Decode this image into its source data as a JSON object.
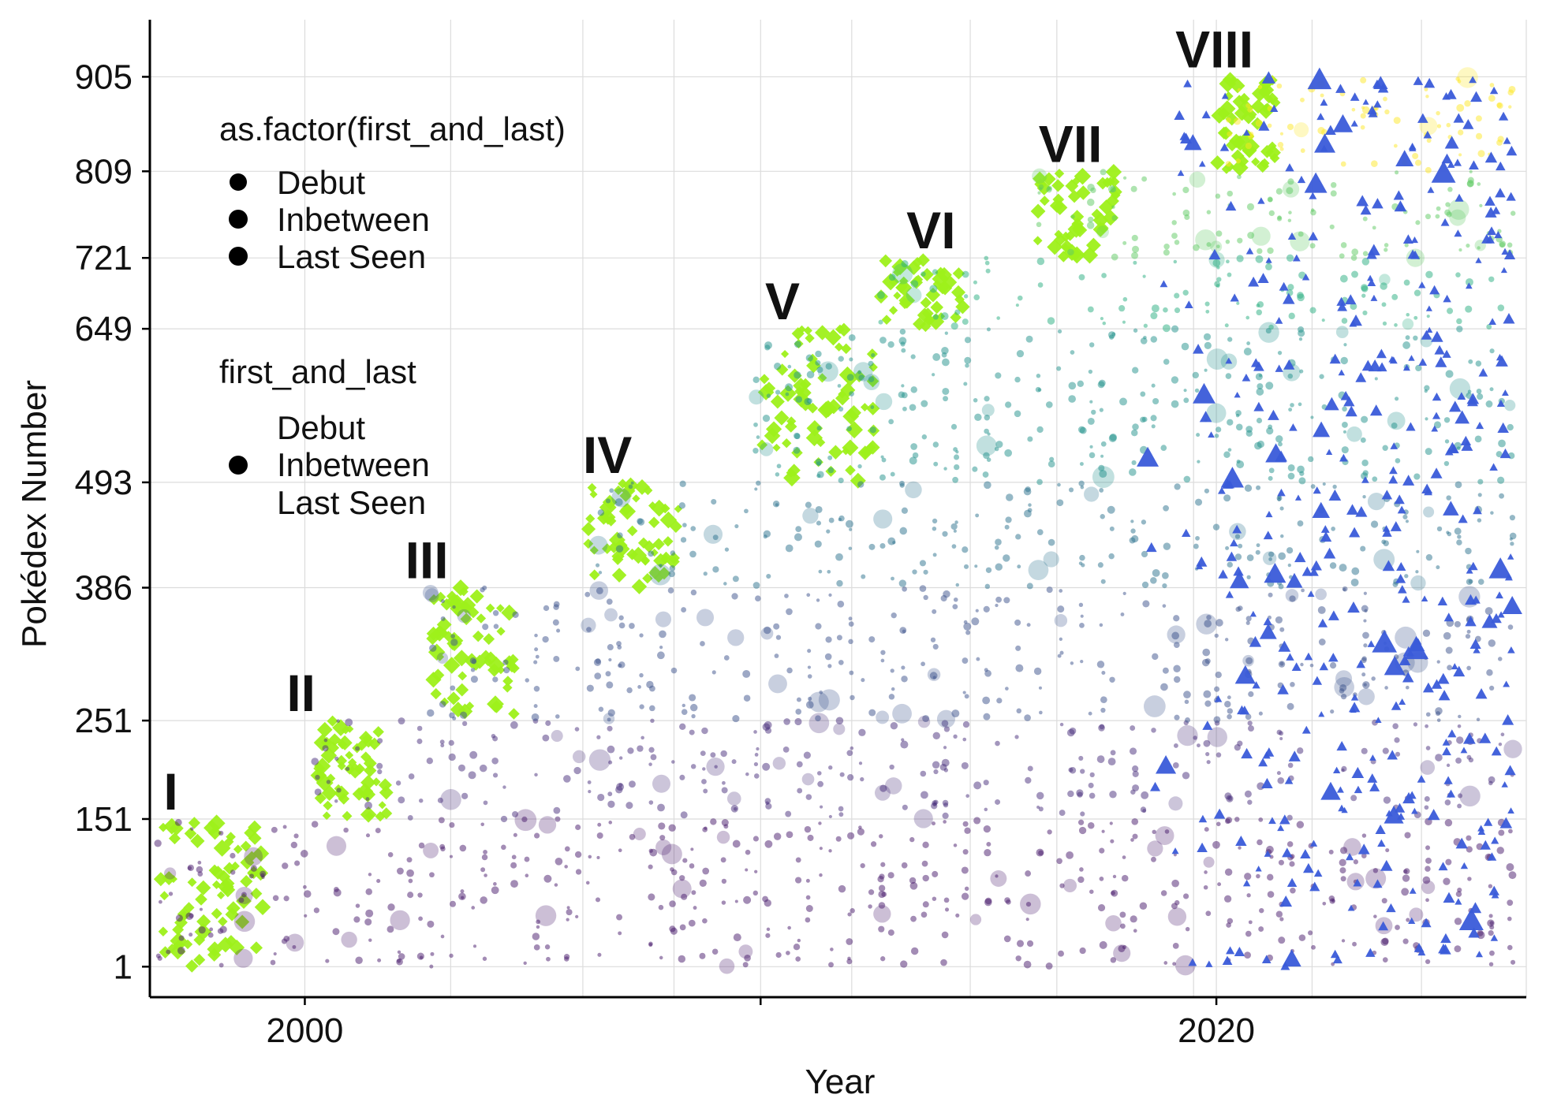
{
  "chart_data": {
    "type": "scatter",
    "title": "",
    "xlabel": "Year",
    "ylabel": "Pokédex Number",
    "xlim": [
      1996.6,
      2026.8
    ],
    "ylim": [
      -30,
      963
    ],
    "x_ticks": [
      {
        "value": 2000,
        "label": "2000"
      },
      {
        "value": 2010,
        "label": ""
      },
      {
        "value": 2020,
        "label": "2020"
      }
    ],
    "x_grid": [
      1996.6,
      2000,
      2003.2,
      2006.1,
      2008.1,
      2010,
      2012,
      2014.6,
      2016.5,
      2019.5,
      2020,
      2022.1,
      2024.5,
      2026.8
    ],
    "y_ticks": [
      {
        "value": 1,
        "label": "1"
      },
      {
        "value": 151,
        "label": "151"
      },
      {
        "value": 251,
        "label": "251"
      },
      {
        "value": 386,
        "label": "386"
      },
      {
        "value": 493,
        "label": "493"
      },
      {
        "value": 649,
        "label": "649"
      },
      {
        "value": 721,
        "label": "721"
      },
      {
        "value": 809,
        "label": "809"
      },
      {
        "value": 905,
        "label": "905"
      }
    ],
    "grid": true,
    "generations": [
      {
        "label": "I",
        "year": 1996.9,
        "dex": 151,
        "range": [
          1,
          151
        ],
        "x0": 1996.8,
        "x1": 1999.1
      },
      {
        "label": "II",
        "year": 1999.6,
        "dex": 251,
        "range": [
          152,
          251
        ],
        "x0": 2000.3,
        "x1": 2001.8
      },
      {
        "label": "III",
        "year": 2002.2,
        "dex": 386,
        "range": [
          252,
          386
        ],
        "x0": 2002.8,
        "x1": 2004.6
      },
      {
        "label": "IV",
        "year": 2006.1,
        "dex": 493,
        "range": [
          387,
          493
        ],
        "x0": 2006.2,
        "x1": 2008.2
      },
      {
        "label": "V",
        "year": 2010.1,
        "dex": 649,
        "range": [
          494,
          649
        ],
        "x0": 2010.0,
        "x1": 2012.5
      },
      {
        "label": "VI",
        "year": 2013.2,
        "dex": 721,
        "range": [
          650,
          721
        ],
        "x0": 2012.6,
        "x1": 2014.5
      },
      {
        "label": "VII",
        "year": 2016.1,
        "dex": 809,
        "range": [
          722,
          809
        ],
        "x0": 2016.0,
        "x1": 2017.8
      },
      {
        "label": "VIII",
        "year": 2019.1,
        "dex": 905,
        "range": [
          810,
          905
        ],
        "x0": 2020.0,
        "x1": 2021.3
      }
    ],
    "series": [
      {
        "name": "Debut",
        "shape": "diamond",
        "color": "#9ef01a"
      },
      {
        "name": "Inbetween",
        "shape": "circle",
        "color": "viridis-by-generation"
      },
      {
        "name": "Last Seen",
        "shape": "triangle",
        "color": "#3a5bd9"
      }
    ],
    "gen_colors": [
      "#481a6c",
      "#472d7b",
      "#3b528b",
      "#2c728e",
      "#21918c",
      "#28ae80",
      "#5ec962",
      "#fde725"
    ],
    "legend": {
      "position": "top-left",
      "title_1": "as.factor(first_and_last)",
      "items_1": [
        "Debut",
        "Inbetween",
        "Last Seen"
      ],
      "title_2": "first_and_last",
      "items_2": [
        "Debut",
        "Inbetween",
        "Last Seen"
      ]
    }
  }
}
